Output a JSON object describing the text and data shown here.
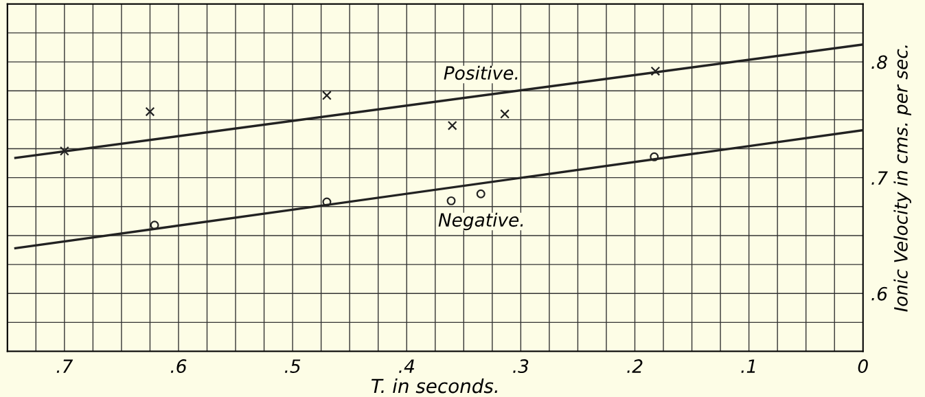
{
  "chart_data": {
    "type": "scatter",
    "xlabel": "T. in seconds.",
    "ylabel": "Ionic Velocity in cms. per sec.",
    "xlim": [
      0.75,
      0
    ],
    "ylim": [
      0.55,
      0.85
    ],
    "xticks": [
      {
        "value": 0.75,
        "label": null
      },
      {
        "value": 0.725,
        "label": null
      },
      {
        "value": 0.7,
        "label": ".7"
      },
      {
        "value": 0.675,
        "label": null
      },
      {
        "value": 0.65,
        "label": null
      },
      {
        "value": 0.625,
        "label": null
      },
      {
        "value": 0.6,
        "label": ".6"
      },
      {
        "value": 0.575,
        "label": null
      },
      {
        "value": 0.55,
        "label": null
      },
      {
        "value": 0.525,
        "label": null
      },
      {
        "value": 0.5,
        "label": ".5"
      },
      {
        "value": 0.475,
        "label": null
      },
      {
        "value": 0.45,
        "label": null
      },
      {
        "value": 0.425,
        "label": null
      },
      {
        "value": 0.4,
        "label": ".4"
      },
      {
        "value": 0.375,
        "label": null
      },
      {
        "value": 0.35,
        "label": null
      },
      {
        "value": 0.325,
        "label": null
      },
      {
        "value": 0.3,
        "label": ".3"
      },
      {
        "value": 0.275,
        "label": null
      },
      {
        "value": 0.25,
        "label": null
      },
      {
        "value": 0.225,
        "label": null
      },
      {
        "value": 0.2,
        "label": ".2"
      },
      {
        "value": 0.175,
        "label": null
      },
      {
        "value": 0.15,
        "label": null
      },
      {
        "value": 0.125,
        "label": null
      },
      {
        "value": 0.1,
        "label": ".1"
      },
      {
        "value": 0.075,
        "label": null
      },
      {
        "value": 0.05,
        "label": null
      },
      {
        "value": 0.025,
        "label": null
      },
      {
        "value": 0,
        "label": "0"
      }
    ],
    "yticks": [
      {
        "value": 0.55,
        "label": null
      },
      {
        "value": 0.575,
        "label": null
      },
      {
        "value": 0.6,
        "label": ".6"
      },
      {
        "value": 0.625,
        "label": null
      },
      {
        "value": 0.65,
        "label": null
      },
      {
        "value": 0.675,
        "label": null
      },
      {
        "value": 0.7,
        "label": ".7"
      },
      {
        "value": 0.725,
        "label": null
      },
      {
        "value": 0.75,
        "label": null
      },
      {
        "value": 0.775,
        "label": null
      },
      {
        "value": 0.8,
        "label": ".8"
      },
      {
        "value": 0.825,
        "label": null
      },
      {
        "value": 0.85,
        "label": null
      }
    ],
    "grid": true,
    "series": [
      {
        "marker": "cross",
        "color": "#222222",
        "x": [
          0.7,
          0.625,
          0.47,
          0.36,
          0.314,
          0.182
        ],
        "values": [
          0.723,
          0.757,
          0.771,
          0.745,
          0.755,
          0.792
        ]
      },
      {
        "marker": "circle",
        "color": "#222222",
        "x": [
          0.621,
          0.47,
          0.361,
          0.335,
          0.183
        ],
        "values": [
          0.659,
          0.679,
          0.68,
          0.686,
          0.718
        ]
      },
      {
        "type": "line",
        "name": "Positive.",
        "line_style": "solid",
        "color": "#222222",
        "x": [
          0.743,
          0
        ],
        "values": [
          0.717,
          0.815
        ]
      },
      {
        "type": "line",
        "name": "Negative.",
        "line_style": "solid",
        "color": "#222222",
        "x": [
          0.743,
          0
        ],
        "values": [
          0.639,
          0.741
        ]
      }
    ]
  }
}
